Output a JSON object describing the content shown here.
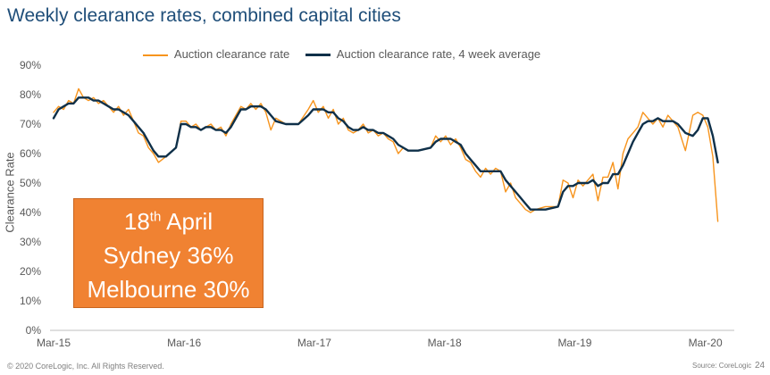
{
  "title": "Weekly clearance rates, combined capital cities",
  "callout": {
    "line1_prefix": "18",
    "line1_sup": "th",
    "line1_suffix": " April",
    "line2": "Sydney 36%",
    "line3": "Melbourne 30%",
    "background": "#f08232"
  },
  "footer": {
    "copyright": "© 2020 CoreLogic, Inc. All Rights Reserved.",
    "source": "Source: CoreLogic",
    "page_number": "24"
  },
  "chart_data": {
    "type": "line",
    "ylabel": "Clearance Rate",
    "ylim": [
      0,
      90
    ],
    "y_ticks": [
      "0%",
      "10%",
      "20%",
      "30%",
      "40%",
      "50%",
      "60%",
      "70%",
      "80%",
      "90%"
    ],
    "x_ticks": [
      "Mar-15",
      "Mar-16",
      "Mar-17",
      "Mar-18",
      "Mar-19",
      "Mar-20"
    ],
    "x_range": [
      "2015-03",
      "2020-04"
    ],
    "grid": false,
    "legend_position": "top",
    "series": [
      {
        "name": "Auction clearance rate",
        "color": "#f7941d",
        "points": [
          [
            "2015-03-01",
            74
          ],
          [
            "2015-03-15",
            76
          ],
          [
            "2015-03-29",
            75
          ],
          [
            "2015-04-12",
            78
          ],
          [
            "2015-04-26",
            77
          ],
          [
            "2015-05-10",
            82
          ],
          [
            "2015-05-24",
            79
          ],
          [
            "2015-06-07",
            78
          ],
          [
            "2015-06-21",
            79
          ],
          [
            "2015-07-05",
            77
          ],
          [
            "2015-07-19",
            78
          ],
          [
            "2015-08-02",
            76
          ],
          [
            "2015-08-16",
            74
          ],
          [
            "2015-08-30",
            76
          ],
          [
            "2015-09-13",
            73
          ],
          [
            "2015-09-27",
            75
          ],
          [
            "2015-10-11",
            71
          ],
          [
            "2015-10-25",
            67
          ],
          [
            "2015-11-08",
            66
          ],
          [
            "2015-11-22",
            62
          ],
          [
            "2015-12-06",
            60
          ],
          [
            "2015-12-20",
            57
          ],
          [
            "2016-01-10",
            59
          ],
          [
            "2016-02-07",
            62
          ],
          [
            "2016-02-21",
            71
          ],
          [
            "2016-03-06",
            71
          ],
          [
            "2016-03-20",
            69
          ],
          [
            "2016-04-03",
            70
          ],
          [
            "2016-04-17",
            68
          ],
          [
            "2016-05-01",
            69
          ],
          [
            "2016-05-15",
            70
          ],
          [
            "2016-05-29",
            68
          ],
          [
            "2016-06-12",
            69
          ],
          [
            "2016-06-26",
            66
          ],
          [
            "2016-07-10",
            70
          ],
          [
            "2016-07-24",
            73
          ],
          [
            "2016-08-07",
            76
          ],
          [
            "2016-08-21",
            75
          ],
          [
            "2016-09-04",
            77
          ],
          [
            "2016-09-18",
            75
          ],
          [
            "2016-10-02",
            77
          ],
          [
            "2016-10-16",
            74
          ],
          [
            "2016-10-30",
            68
          ],
          [
            "2016-11-13",
            72
          ],
          [
            "2016-12-11",
            70
          ],
          [
            "2017-01-15",
            70
          ],
          [
            "2017-02-12",
            75
          ],
          [
            "2017-02-26",
            78
          ],
          [
            "2017-03-12",
            74
          ],
          [
            "2017-03-26",
            76
          ],
          [
            "2017-04-09",
            72
          ],
          [
            "2017-04-23",
            75
          ],
          [
            "2017-05-07",
            70
          ],
          [
            "2017-05-21",
            72
          ],
          [
            "2017-06-04",
            68
          ],
          [
            "2017-06-18",
            67
          ],
          [
            "2017-07-02",
            68
          ],
          [
            "2017-07-16",
            70
          ],
          [
            "2017-07-30",
            67
          ],
          [
            "2017-08-13",
            68
          ],
          [
            "2017-08-27",
            66
          ],
          [
            "2017-09-10",
            67
          ],
          [
            "2017-09-24",
            65
          ],
          [
            "2017-10-08",
            64
          ],
          [
            "2017-10-22",
            60
          ],
          [
            "2017-11-05",
            62
          ],
          [
            "2017-11-19",
            61
          ],
          [
            "2017-12-17",
            61
          ],
          [
            "2018-01-21",
            62
          ],
          [
            "2018-02-04",
            66
          ],
          [
            "2018-02-18",
            64
          ],
          [
            "2018-03-04",
            66
          ],
          [
            "2018-03-18",
            63
          ],
          [
            "2018-04-01",
            65
          ],
          [
            "2018-04-15",
            62
          ],
          [
            "2018-04-29",
            58
          ],
          [
            "2018-05-13",
            57
          ],
          [
            "2018-05-27",
            54
          ],
          [
            "2018-06-10",
            52
          ],
          [
            "2018-06-24",
            55
          ],
          [
            "2018-07-08",
            53
          ],
          [
            "2018-07-22",
            55
          ],
          [
            "2018-08-05",
            54
          ],
          [
            "2018-08-19",
            47
          ],
          [
            "2018-09-02",
            50
          ],
          [
            "2018-09-16",
            45
          ],
          [
            "2018-09-30",
            43
          ],
          [
            "2018-10-14",
            41
          ],
          [
            "2018-10-28",
            40
          ],
          [
            "2018-11-11",
            41
          ],
          [
            "2018-12-09",
            42
          ],
          [
            "2019-01-13",
            42
          ],
          [
            "2019-01-27",
            51
          ],
          [
            "2019-02-10",
            50
          ],
          [
            "2019-02-24",
            45
          ],
          [
            "2019-03-10",
            51
          ],
          [
            "2019-03-24",
            49
          ],
          [
            "2019-04-07",
            51
          ],
          [
            "2019-04-21",
            53
          ],
          [
            "2019-05-05",
            44
          ],
          [
            "2019-05-19",
            52
          ],
          [
            "2019-06-02",
            52
          ],
          [
            "2019-06-16",
            57
          ],
          [
            "2019-06-30",
            48
          ],
          [
            "2019-07-14",
            60
          ],
          [
            "2019-07-28",
            65
          ],
          [
            "2019-08-11",
            67
          ],
          [
            "2019-08-25",
            69
          ],
          [
            "2019-09-08",
            74
          ],
          [
            "2019-09-22",
            72
          ],
          [
            "2019-10-06",
            70
          ],
          [
            "2019-10-20",
            72
          ],
          [
            "2019-11-03",
            69
          ],
          [
            "2019-11-17",
            73
          ],
          [
            "2019-12-01",
            71
          ],
          [
            "2019-12-15",
            69
          ],
          [
            "2020-01-05",
            61
          ],
          [
            "2020-01-26",
            73
          ],
          [
            "2020-02-09",
            74
          ],
          [
            "2020-02-23",
            73
          ],
          [
            "2020-03-08",
            69
          ],
          [
            "2020-03-22",
            59
          ],
          [
            "2020-04-05",
            37
          ]
        ]
      },
      {
        "name": "Auction clearance rate, 4 week average",
        "color": "#0f3049",
        "points": [
          [
            "2015-03-01",
            72
          ],
          [
            "2015-03-15",
            75
          ],
          [
            "2015-03-29",
            76
          ],
          [
            "2015-04-12",
            77
          ],
          [
            "2015-04-26",
            77
          ],
          [
            "2015-05-10",
            79
          ],
          [
            "2015-05-24",
            79
          ],
          [
            "2015-06-07",
            79
          ],
          [
            "2015-06-21",
            78
          ],
          [
            "2015-07-05",
            78
          ],
          [
            "2015-07-19",
            77
          ],
          [
            "2015-08-02",
            76
          ],
          [
            "2015-08-16",
            75
          ],
          [
            "2015-08-30",
            75
          ],
          [
            "2015-09-13",
            74
          ],
          [
            "2015-09-27",
            73
          ],
          [
            "2015-10-11",
            71
          ],
          [
            "2015-10-25",
            69
          ],
          [
            "2015-11-08",
            67
          ],
          [
            "2015-11-22",
            64
          ],
          [
            "2015-12-06",
            61
          ],
          [
            "2015-12-20",
            59
          ],
          [
            "2016-01-10",
            59
          ],
          [
            "2016-02-07",
            62
          ],
          [
            "2016-02-21",
            70
          ],
          [
            "2016-03-06",
            70
          ],
          [
            "2016-03-20",
            69
          ],
          [
            "2016-04-03",
            69
          ],
          [
            "2016-04-17",
            68
          ],
          [
            "2016-05-01",
            69
          ],
          [
            "2016-05-15",
            69
          ],
          [
            "2016-05-29",
            68
          ],
          [
            "2016-06-12",
            68
          ],
          [
            "2016-06-26",
            67
          ],
          [
            "2016-07-10",
            69
          ],
          [
            "2016-07-24",
            72
          ],
          [
            "2016-08-07",
            75
          ],
          [
            "2016-08-21",
            75
          ],
          [
            "2016-09-04",
            76
          ],
          [
            "2016-09-18",
            76
          ],
          [
            "2016-10-02",
            76
          ],
          [
            "2016-10-16",
            75
          ],
          [
            "2016-10-30",
            73
          ],
          [
            "2016-11-13",
            71
          ],
          [
            "2016-12-11",
            70
          ],
          [
            "2017-01-15",
            70
          ],
          [
            "2017-02-12",
            73
          ],
          [
            "2017-02-26",
            75
          ],
          [
            "2017-03-12",
            75
          ],
          [
            "2017-03-26",
            75
          ],
          [
            "2017-04-09",
            74
          ],
          [
            "2017-04-23",
            74
          ],
          [
            "2017-05-07",
            72
          ],
          [
            "2017-05-21",
            71
          ],
          [
            "2017-06-04",
            69
          ],
          [
            "2017-06-18",
            68
          ],
          [
            "2017-07-02",
            68
          ],
          [
            "2017-07-16",
            69
          ],
          [
            "2017-07-30",
            68
          ],
          [
            "2017-08-13",
            68
          ],
          [
            "2017-08-27",
            67
          ],
          [
            "2017-09-10",
            67
          ],
          [
            "2017-09-24",
            66
          ],
          [
            "2017-10-08",
            65
          ],
          [
            "2017-10-22",
            63
          ],
          [
            "2017-11-05",
            62
          ],
          [
            "2017-11-19",
            61
          ],
          [
            "2017-12-17",
            61
          ],
          [
            "2018-01-21",
            62
          ],
          [
            "2018-02-04",
            64
          ],
          [
            "2018-02-18",
            65
          ],
          [
            "2018-03-04",
            65
          ],
          [
            "2018-03-18",
            65
          ],
          [
            "2018-04-01",
            64
          ],
          [
            "2018-04-15",
            63
          ],
          [
            "2018-04-29",
            60
          ],
          [
            "2018-05-13",
            58
          ],
          [
            "2018-05-27",
            56
          ],
          [
            "2018-06-10",
            54
          ],
          [
            "2018-06-24",
            54
          ],
          [
            "2018-07-08",
            54
          ],
          [
            "2018-07-22",
            54
          ],
          [
            "2018-08-05",
            54
          ],
          [
            "2018-08-19",
            51
          ],
          [
            "2018-09-02",
            49
          ],
          [
            "2018-09-16",
            47
          ],
          [
            "2018-09-30",
            45
          ],
          [
            "2018-10-14",
            43
          ],
          [
            "2018-10-28",
            41
          ],
          [
            "2018-11-11",
            41
          ],
          [
            "2018-12-09",
            41
          ],
          [
            "2019-01-13",
            42
          ],
          [
            "2019-01-27",
            47
          ],
          [
            "2019-02-10",
            49
          ],
          [
            "2019-02-24",
            49
          ],
          [
            "2019-03-10",
            50
          ],
          [
            "2019-03-24",
            50
          ],
          [
            "2019-04-07",
            50
          ],
          [
            "2019-04-21",
            51
          ],
          [
            "2019-05-05",
            49
          ],
          [
            "2019-05-19",
            50
          ],
          [
            "2019-06-02",
            50
          ],
          [
            "2019-06-16",
            53
          ],
          [
            "2019-06-30",
            53
          ],
          [
            "2019-07-14",
            56
          ],
          [
            "2019-07-28",
            60
          ],
          [
            "2019-08-11",
            64
          ],
          [
            "2019-08-25",
            67
          ],
          [
            "2019-09-08",
            70
          ],
          [
            "2019-09-22",
            71
          ],
          [
            "2019-10-06",
            71
          ],
          [
            "2019-10-20",
            72
          ],
          [
            "2019-11-03",
            71
          ],
          [
            "2019-11-17",
            71
          ],
          [
            "2019-12-01",
            71
          ],
          [
            "2019-12-15",
            70
          ],
          [
            "2020-01-05",
            67
          ],
          [
            "2020-01-26",
            66
          ],
          [
            "2020-02-09",
            68
          ],
          [
            "2020-02-23",
            72
          ],
          [
            "2020-03-08",
            72
          ],
          [
            "2020-03-22",
            66
          ],
          [
            "2020-04-05",
            57
          ]
        ]
      }
    ]
  }
}
